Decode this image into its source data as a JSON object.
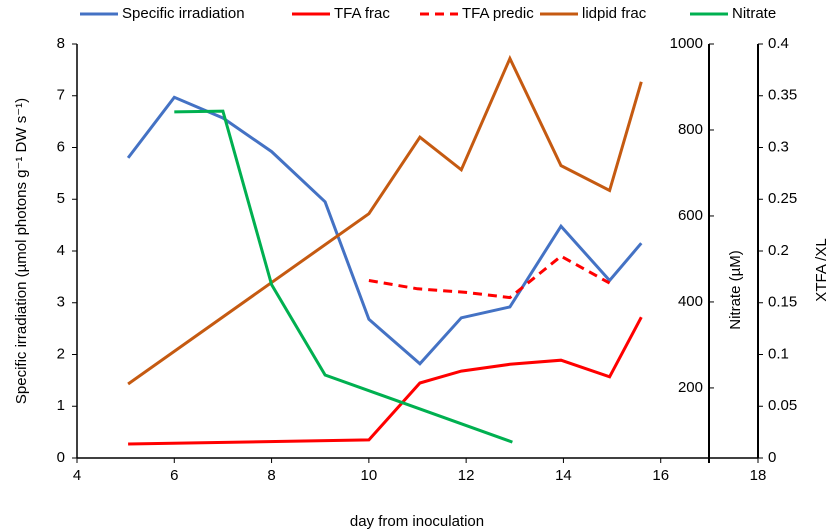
{
  "chart_data": {
    "type": "line",
    "x_label": "day from inoculation",
    "y_label": "Specific irradiation  (µmol photons  g⁻¹ DW s⁻¹)",
    "y2_label": "Nitrate (µM)",
    "y3_label": "XTFA /XL",
    "xlim": [
      4,
      18
    ],
    "xticks": [
      4,
      6,
      8,
      10,
      12,
      14,
      16,
      18
    ],
    "ylim": [
      0,
      8
    ],
    "yticks": [
      0,
      1,
      2,
      3,
      4,
      5,
      6,
      7,
      8
    ],
    "y2lim": [
      37,
      1000
    ],
    "y2ticks": [
      200,
      400,
      600,
      800,
      1000
    ],
    "y3lim": [
      0,
      0.4
    ],
    "y3ticks": [
      0,
      0.05,
      0.1,
      0.15,
      0.2,
      0.25,
      0.3,
      0.35,
      0.4
    ],
    "legend": "top",
    "series": [
      {
        "name": "Specific irradiation",
        "color": "#4472c4",
        "axis": "y",
        "x": [
          5.05,
          6,
          7,
          8,
          9.1,
          10,
          11.05,
          11.9,
          12.9,
          13.95,
          14.95,
          15.6
        ],
        "values": [
          5.8,
          6.97,
          6.57,
          5.92,
          4.95,
          2.68,
          1.82,
          2.71,
          2.92,
          4.48,
          3.43,
          4.15
        ]
      },
      {
        "name": "TFA frac",
        "color": "#ff0000",
        "axis": "y3",
        "x": [
          5.05,
          10,
          11.05,
          11.9,
          12.9,
          13.95,
          14.95,
          15.6
        ],
        "values": [
          0.0135,
          0.0175,
          0.0725,
          0.084,
          0.0905,
          0.0945,
          0.0785,
          0.136
        ]
      },
      {
        "name": "TFA predic",
        "color": "#ff0000",
        "axis": "y3",
        "dash": true,
        "x": [
          10,
          11,
          12,
          12.9,
          13.95,
          14.95
        ],
        "values": [
          0.1715,
          0.1635,
          0.16,
          0.155,
          0.195,
          0.169
        ]
      },
      {
        "name": "lidpid frac",
        "color": "#c55a11",
        "axis": "y3",
        "x": [
          5.05,
          10,
          11.05,
          11.9,
          12.9,
          13.95,
          14.95,
          15.6
        ],
        "values": [
          0.0715,
          0.236,
          0.31,
          0.2785,
          0.386,
          0.2825,
          0.2585,
          0.3635
        ]
      },
      {
        "name": "Nitrate",
        "color": "#00b050",
        "axis": "y2",
        "x": [
          6,
          7,
          8,
          9.1,
          12.95
        ],
        "values": [
          842,
          844,
          440,
          230,
          74
        ]
      }
    ]
  }
}
